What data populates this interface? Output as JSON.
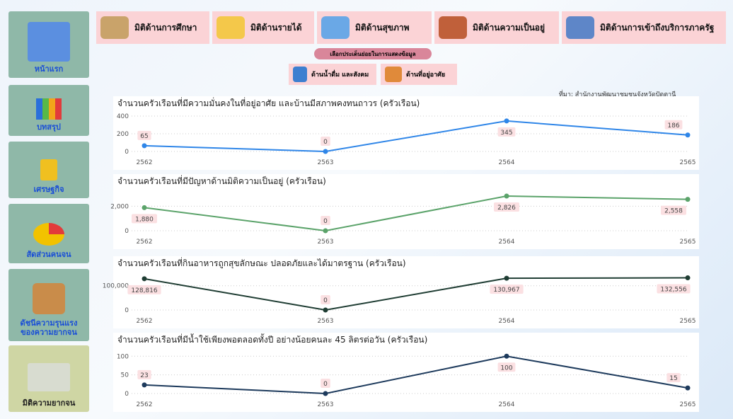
{
  "sidebar": [
    {
      "lines": [
        "หน้าแรก"
      ]
    },
    {
      "lines": [
        "บทสรุป"
      ]
    },
    {
      "lines": [
        "เศรษฐกิจ"
      ]
    },
    {
      "lines": [
        "สัดส่วนคนจน"
      ]
    },
    {
      "lines": [
        "ดัชนีความรุนแรง",
        "ของความยากจน"
      ]
    },
    {
      "lines": [
        "มิติความยากจน"
      ]
    }
  ],
  "tabs": [
    "มิติด้านการศึกษา",
    "มิติด้านรายได้",
    "มิติด้านสุขภาพ",
    "มิติด้านความเป็นอยู่",
    "มิติด้านการเข้าถึงบริการภาครัฐ"
  ],
  "prompt": "เลือกประเด็นย่อยในการแสดงข้อมูล",
  "subtabs": [
    "ด้านน้ำดื่ม และสังคม",
    "ด้านที่อยู่อาศัย"
  ],
  "source": "ที่มา: สำนักงานพัฒนาชุมชนจังหวัดปัตตานี",
  "chart_data": [
    {
      "type": "line",
      "title": "จำนวนครัวเรือนที่มีความมั่นคงในที่อยู่อาศัย และบ้านมีสภาพคงทนถาวร (ครัวเรือน)",
      "categories": [
        "2562",
        "2563",
        "2564",
        "2565"
      ],
      "values": [
        65,
        0,
        345,
        186
      ],
      "color": "#2f86e8",
      "ylim": [
        0,
        400
      ],
      "yticks": [
        0,
        200,
        400
      ],
      "grid": true
    },
    {
      "type": "line",
      "title": "จำนวนครัวเรือนที่มีปัญหาด้านมิติความเป็นอยู่ (ครัวเรือน)",
      "categories": [
        "2562",
        "2563",
        "2564",
        "2565"
      ],
      "values": [
        1880,
        0,
        2826,
        2558
      ],
      "value_labels": [
        "1,880",
        "0",
        "2,826",
        "2,558"
      ],
      "color": "#5ba36a",
      "ylim": [
        0,
        3000
      ],
      "yticks": [
        0,
        {
          "value": 2000,
          "label": "2,000"
        }
      ],
      "grid": true
    },
    {
      "type": "line",
      "title": "จำนวนครัวเรือนที่กินอาหารถูกสุขลักษณะ ปลอดภัยและได้มาตรฐาน (ครัวเรือน)",
      "categories": [
        "2562",
        "2563",
        "2564",
        "2565"
      ],
      "values": [
        128816,
        0,
        130967,
        132556
      ],
      "value_labels": [
        "128,816",
        "0",
        "130,967",
        "132,556"
      ],
      "color": "#1f3d33",
      "ylim": [
        0,
        140000
      ],
      "yticks": [
        0,
        {
          "value": 100000,
          "label": "100,000"
        }
      ],
      "grid": true
    },
    {
      "type": "line",
      "title": "จำนวนครัวเรือนที่มีน้ำใช้เพียงพอตลอดทั้งปี อย่างน้อยคนละ 45 ลิตรต่อวัน (ครัวเรือน)",
      "categories": [
        "2562",
        "2563",
        "2564",
        "2565"
      ],
      "values": [
        23,
        0,
        100,
        15
      ],
      "color": "#1d3a5c",
      "ylim": [
        0,
        110
      ],
      "yticks": [
        0,
        50,
        100
      ],
      "grid": true
    }
  ]
}
